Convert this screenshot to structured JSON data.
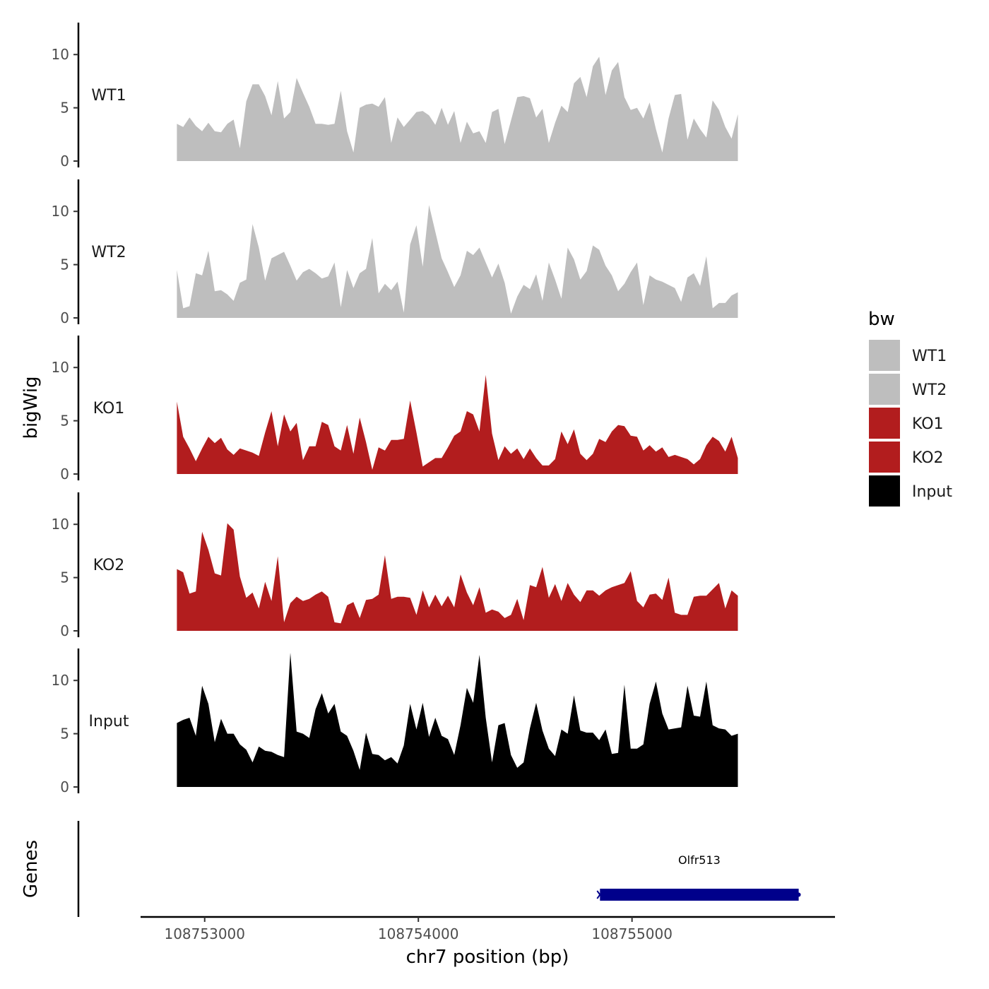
{
  "chart_data": {
    "type": "area",
    "xlabel": "chr7 position (bp)",
    "ylabel": "bigWig",
    "genes_label": "Genes",
    "xlim": [
      108752700,
      108755950
    ],
    "x_ticks": [
      108753000,
      108754000,
      108755000
    ],
    "x_tick_labels": [
      "108753000",
      "108754000",
      "108755000"
    ],
    "ylim": [
      0,
      13
    ],
    "y_ticks": [
      0,
      5,
      10
    ],
    "y_tick_labels": [
      "0",
      "5",
      "10"
    ],
    "x_start": 108752870,
    "x_step": 29.5,
    "legend": {
      "title": "bw",
      "entries": [
        {
          "label": "WT1",
          "color": "#bebebe"
        },
        {
          "label": "WT2",
          "color": "#bebebe"
        },
        {
          "label": "KO1",
          "color": "#b21d1e"
        },
        {
          "label": "KO2",
          "color": "#b21d1e"
        },
        {
          "label": "Input",
          "color": "#000000"
        }
      ]
    },
    "series": [
      {
        "name": "WT1",
        "color": "#bebebe",
        "values": [
          3.5,
          3.2,
          4.1,
          3.3,
          2.8,
          3.6,
          2.8,
          2.7,
          3.5,
          3.9,
          1.2,
          5.6,
          7.2,
          7.2,
          6.1,
          4.3,
          7.5,
          4.0,
          4.6,
          7.8,
          6.4,
          5.1,
          3.5,
          3.5,
          3.4,
          3.5,
          6.6,
          2.8,
          0.8,
          5.0,
          5.3,
          5.4,
          5.1,
          6.0,
          1.7,
          4.1,
          3.2,
          3.9,
          4.6,
          4.7,
          4.3,
          3.4,
          5.0,
          3.4,
          4.7,
          1.7,
          3.7,
          2.6,
          2.8,
          1.7,
          4.6,
          4.9,
          1.6,
          3.8,
          6.0,
          6.1,
          5.9,
          4.1,
          4.9,
          1.7,
          3.6,
          5.2,
          4.6,
          7.3,
          7.9,
          6.0,
          8.9,
          9.8,
          6.2,
          8.5,
          9.3,
          6.0,
          4.8,
          5.0,
          4.0,
          5.5,
          3.0,
          0.8,
          4.0,
          6.2,
          6.3,
          2.0,
          4.0,
          3.0,
          2.2,
          5.7,
          4.8,
          3.2,
          2.1,
          4.4
        ]
      },
      {
        "name": "WT2",
        "color": "#bebebe",
        "values": [
          4.5,
          0.9,
          1.1,
          4.2,
          4.0,
          6.3,
          2.5,
          2.6,
          2.2,
          1.6,
          3.3,
          3.6,
          8.8,
          6.6,
          3.5,
          5.6,
          5.9,
          6.2,
          4.9,
          3.5,
          4.3,
          4.6,
          4.2,
          3.7,
          3.9,
          5.2,
          1.0,
          4.5,
          2.8,
          4.2,
          4.6,
          7.5,
          2.3,
          3.2,
          2.6,
          3.4,
          0.5,
          6.9,
          8.7,
          4.8,
          10.6,
          8.1,
          5.6,
          4.3,
          2.9,
          4.0,
          6.3,
          5.9,
          6.6,
          5.2,
          3.8,
          5.1,
          3.3,
          0.4,
          2.0,
          3.1,
          2.7,
          4.1,
          1.6,
          5.2,
          3.6,
          1.8,
          6.6,
          5.5,
          3.6,
          4.4,
          6.8,
          6.4,
          4.9,
          4.0,
          2.5,
          3.2,
          4.3,
          5.2,
          1.2,
          4.0,
          3.6,
          3.4,
          3.1,
          2.8,
          1.5,
          3.8,
          4.2,
          3.0,
          5.8,
          0.9,
          1.4,
          1.4,
          2.1,
          2.4
        ]
      },
      {
        "name": "KO1",
        "color": "#b21d1e",
        "values": [
          6.8,
          3.5,
          2.4,
          1.2,
          2.4,
          3.5,
          2.9,
          3.4,
          2.3,
          1.8,
          2.4,
          2.2,
          2.0,
          1.7,
          3.9,
          5.9,
          2.6,
          5.6,
          4.0,
          4.8,
          1.3,
          2.6,
          2.6,
          4.9,
          4.6,
          2.6,
          2.2,
          4.6,
          1.9,
          5.3,
          3.0,
          0.4,
          2.5,
          2.2,
          3.2,
          3.2,
          3.3,
          6.9,
          3.9,
          0.7,
          1.1,
          1.5,
          1.5,
          2.5,
          3.6,
          4.0,
          5.9,
          5.6,
          4.0,
          9.3,
          3.8,
          1.3,
          2.6,
          1.9,
          2.4,
          1.4,
          2.4,
          1.5,
          0.8,
          0.8,
          1.4,
          4.0,
          2.8,
          4.2,
          1.9,
          1.3,
          1.9,
          3.3,
          3.0,
          4.0,
          4.6,
          4.5,
          3.6,
          3.5,
          2.2,
          2.7,
          2.1,
          2.5,
          1.6,
          1.8,
          1.6,
          1.4,
          0.9,
          1.4,
          2.7,
          3.5,
          3.1,
          2.1,
          3.5,
          1.5
        ]
      },
      {
        "name": "KO2",
        "color": "#b21d1e",
        "values": [
          5.8,
          5.5,
          3.5,
          3.7,
          9.3,
          7.6,
          5.4,
          5.2,
          10.1,
          9.5,
          5.1,
          3.1,
          3.6,
          2.1,
          4.6,
          2.8,
          7.0,
          0.8,
          2.6,
          3.2,
          2.8,
          3.0,
          3.4,
          3.7,
          3.2,
          0.8,
          0.7,
          2.4,
          2.7,
          1.2,
          2.9,
          3.0,
          3.4,
          7.1,
          3.0,
          3.2,
          3.2,
          3.1,
          1.5,
          3.8,
          2.2,
          3.4,
          2.3,
          3.3,
          2.2,
          5.3,
          3.6,
          2.4,
          4.1,
          1.7,
          2.0,
          1.8,
          1.2,
          1.5,
          3.0,
          1.0,
          4.3,
          4.1,
          6.0,
          3.1,
          4.4,
          2.8,
          4.5,
          3.4,
          2.7,
          3.8,
          3.8,
          3.3,
          3.8,
          4.1,
          4.3,
          4.5,
          5.6,
          2.8,
          2.2,
          3.4,
          3.5,
          2.9,
          5.0,
          1.7,
          1.5,
          1.5,
          3.2,
          3.3,
          3.3,
          3.9,
          4.5,
          2.1,
          3.8,
          3.3
        ]
      },
      {
        "name": "Input",
        "color": "#000000",
        "values": [
          6.0,
          6.3,
          6.5,
          4.8,
          9.5,
          7.8,
          4.2,
          6.4,
          5.0,
          5.0,
          4.0,
          3.5,
          2.3,
          3.8,
          3.4,
          3.3,
          3.0,
          2.8,
          12.6,
          5.2,
          5.0,
          4.6,
          7.3,
          8.8,
          6.9,
          7.8,
          5.2,
          4.8,
          3.4,
          1.6,
          5.1,
          3.1,
          3.0,
          2.5,
          2.8,
          2.2,
          3.9,
          7.8,
          5.4,
          7.9,
          4.7,
          6.5,
          4.8,
          4.5,
          3.0,
          5.8,
          9.3,
          7.9,
          12.4,
          6.5,
          2.3,
          5.8,
          6.0,
          3.0,
          1.8,
          2.3,
          5.5,
          7.9,
          5.3,
          3.6,
          2.9,
          5.4,
          5.0,
          8.6,
          5.3,
          5.1,
          5.1,
          4.4,
          5.4,
          3.1,
          3.2,
          9.6,
          3.6,
          3.6,
          4.0,
          7.8,
          9.9,
          6.9,
          5.4,
          5.5,
          5.6,
          9.5,
          6.7,
          6.6,
          9.9,
          5.8,
          5.5,
          5.4,
          4.8,
          5.0
        ]
      }
    ],
    "genes": [
      {
        "name": "Olfr513",
        "start": 108754850,
        "end": 108755780,
        "strand": "-",
        "color": "#00008b"
      }
    ]
  }
}
